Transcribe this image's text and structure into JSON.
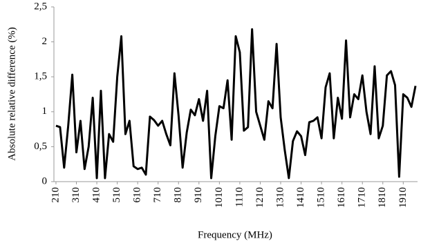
{
  "chart_data": {
    "type": "line",
    "xlabel": "Frequency (MHz)",
    "ylabel": "Absolute relative difference (%)",
    "x": [
      210,
      230,
      250,
      270,
      290,
      310,
      330,
      350,
      370,
      390,
      410,
      430,
      450,
      470,
      490,
      510,
      530,
      550,
      570,
      590,
      610,
      630,
      650,
      670,
      690,
      710,
      730,
      750,
      770,
      790,
      810,
      830,
      850,
      870,
      890,
      910,
      930,
      950,
      970,
      990,
      1010,
      1030,
      1050,
      1070,
      1090,
      1110,
      1130,
      1150,
      1170,
      1190,
      1210,
      1230,
      1250,
      1270,
      1290,
      1310,
      1330,
      1350,
      1370,
      1390,
      1410,
      1430,
      1450,
      1470,
      1490,
      1510,
      1530,
      1550,
      1570,
      1590,
      1610,
      1630,
      1650,
      1670,
      1690,
      1710,
      1730,
      1750,
      1770,
      1790,
      1810,
      1830,
      1850,
      1870,
      1890,
      1910,
      1930,
      1950,
      1970
    ],
    "values": [
      0.8,
      0.78,
      0.2,
      0.8,
      1.53,
      0.42,
      0.87,
      0.18,
      0.5,
      1.2,
      0.05,
      1.3,
      0.05,
      0.68,
      0.57,
      1.5,
      2.08,
      0.68,
      0.87,
      0.22,
      0.18,
      0.2,
      0.1,
      0.93,
      0.88,
      0.8,
      0.87,
      0.68,
      0.52,
      1.55,
      0.95,
      0.2,
      0.7,
      1.03,
      0.95,
      1.18,
      0.87,
      1.3,
      0.05,
      0.65,
      1.08,
      1.05,
      1.45,
      0.6,
      2.08,
      1.85,
      0.73,
      0.78,
      2.18,
      1.0,
      0.8,
      0.6,
      1.15,
      1.05,
      1.97,
      0.92,
      0.45,
      0.05,
      0.58,
      0.72,
      0.65,
      0.38,
      0.85,
      0.87,
      0.92,
      0.62,
      1.35,
      1.55,
      0.62,
      1.2,
      0.9,
      2.02,
      0.92,
      1.25,
      1.18,
      1.52,
      1.0,
      0.68,
      1.65,
      0.62,
      0.8,
      1.52,
      1.58,
      1.38,
      0.07,
      1.25,
      1.2,
      1.07,
      1.37
    ],
    "color": "#000000",
    "xlim": [
      200,
      1980
    ],
    "xticks": [
      210,
      310,
      410,
      510,
      610,
      710,
      810,
      910,
      1010,
      1110,
      1210,
      1310,
      1410,
      1510,
      1610,
      1710,
      1810,
      1910
    ],
    "ylim": [
      0,
      2.5
    ],
    "yticks": [
      0,
      {
        "value": 0.5,
        "label": "0,5"
      },
      1,
      {
        "value": 1.5,
        "label": "1,5"
      },
      2,
      {
        "value": 2.5,
        "label": "2,5"
      }
    ]
  }
}
